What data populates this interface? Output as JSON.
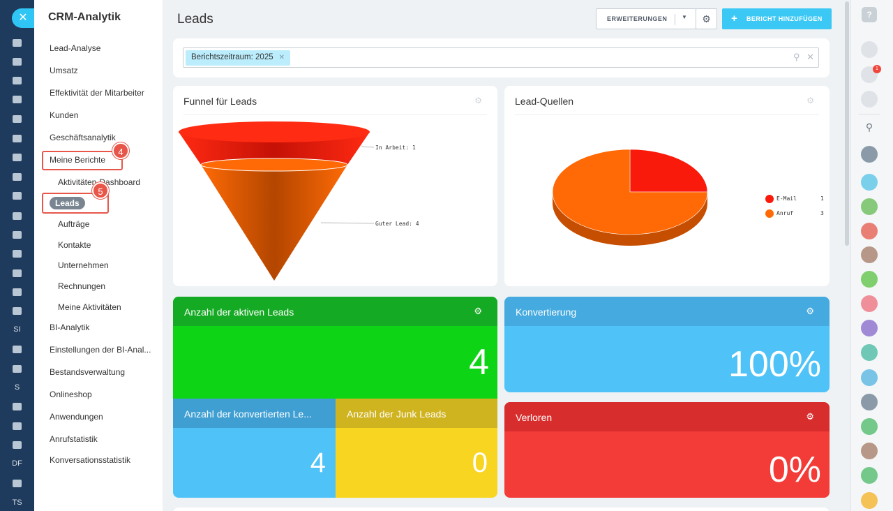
{
  "sidebar": {
    "title": "CRM-Analytik",
    "items": [
      {
        "label": "Lead-Analyse"
      },
      {
        "label": "Umsatz"
      },
      {
        "label": "Effektivität der Mitarbeiter"
      },
      {
        "label": "Kunden"
      },
      {
        "label": "Geschäftsanalytik"
      },
      {
        "label": "Meine Berichte"
      },
      {
        "label": "Aktivitäten-Dashboard"
      },
      {
        "label": "Leads"
      },
      {
        "label": "Aufträge"
      },
      {
        "label": "Kontakte"
      },
      {
        "label": "Unternehmen"
      },
      {
        "label": "Rechnungen"
      },
      {
        "label": "Meine Aktivitäten"
      },
      {
        "label": "BI-Analytik"
      },
      {
        "label": "Einstellungen der BI-Anal..."
      },
      {
        "label": "Bestandsverwaltung"
      },
      {
        "label": "Onlineshop"
      },
      {
        "label": "Anwendungen"
      },
      {
        "label": "Anrufstatistik"
      },
      {
        "label": "Konversationsstatistik"
      }
    ],
    "annotations": {
      "step4": "4",
      "step5": "5"
    }
  },
  "rail": {
    "labels": [
      "SI",
      "S",
      "DF",
      "TS"
    ]
  },
  "header": {
    "title": "Leads",
    "extensions_label": "ERWEITERUNGEN",
    "add_report_label": "BERICHT HINZUFÜGEN"
  },
  "filter": {
    "tag": "Berichtszeitraum: 2025"
  },
  "funnel": {
    "title": "Funnel für Leads",
    "stages": [
      {
        "label": "In Arbeit: 1",
        "value": 1
      },
      {
        "label": "Guter Lead: 4",
        "value": 4
      }
    ]
  },
  "sources": {
    "title": "Lead-Quellen",
    "legend": [
      {
        "name": "E-Mail",
        "count": "1",
        "color": "#f91a0b"
      },
      {
        "name": "Anruf",
        "count": "3",
        "color": "#ff6a06"
      }
    ]
  },
  "chart_data": {
    "type": "pie",
    "title": "Lead-Quellen",
    "categories": [
      "E-Mail",
      "Anruf"
    ],
    "values": [
      1,
      3
    ],
    "legend": "right"
  },
  "tiles": {
    "active": {
      "title": "Anzahl der aktiven Leads",
      "value": "4"
    },
    "converted": {
      "title": "Anzahl der konvertierten Le...",
      "value": "4"
    },
    "junk": {
      "title": "Anzahl der Junk Leads",
      "value": "0"
    },
    "conversion": {
      "title": "Konvertierung",
      "value": "100%"
    },
    "lost": {
      "title": "Verloren",
      "value": "0%"
    }
  },
  "notifications": {
    "count": "1"
  }
}
